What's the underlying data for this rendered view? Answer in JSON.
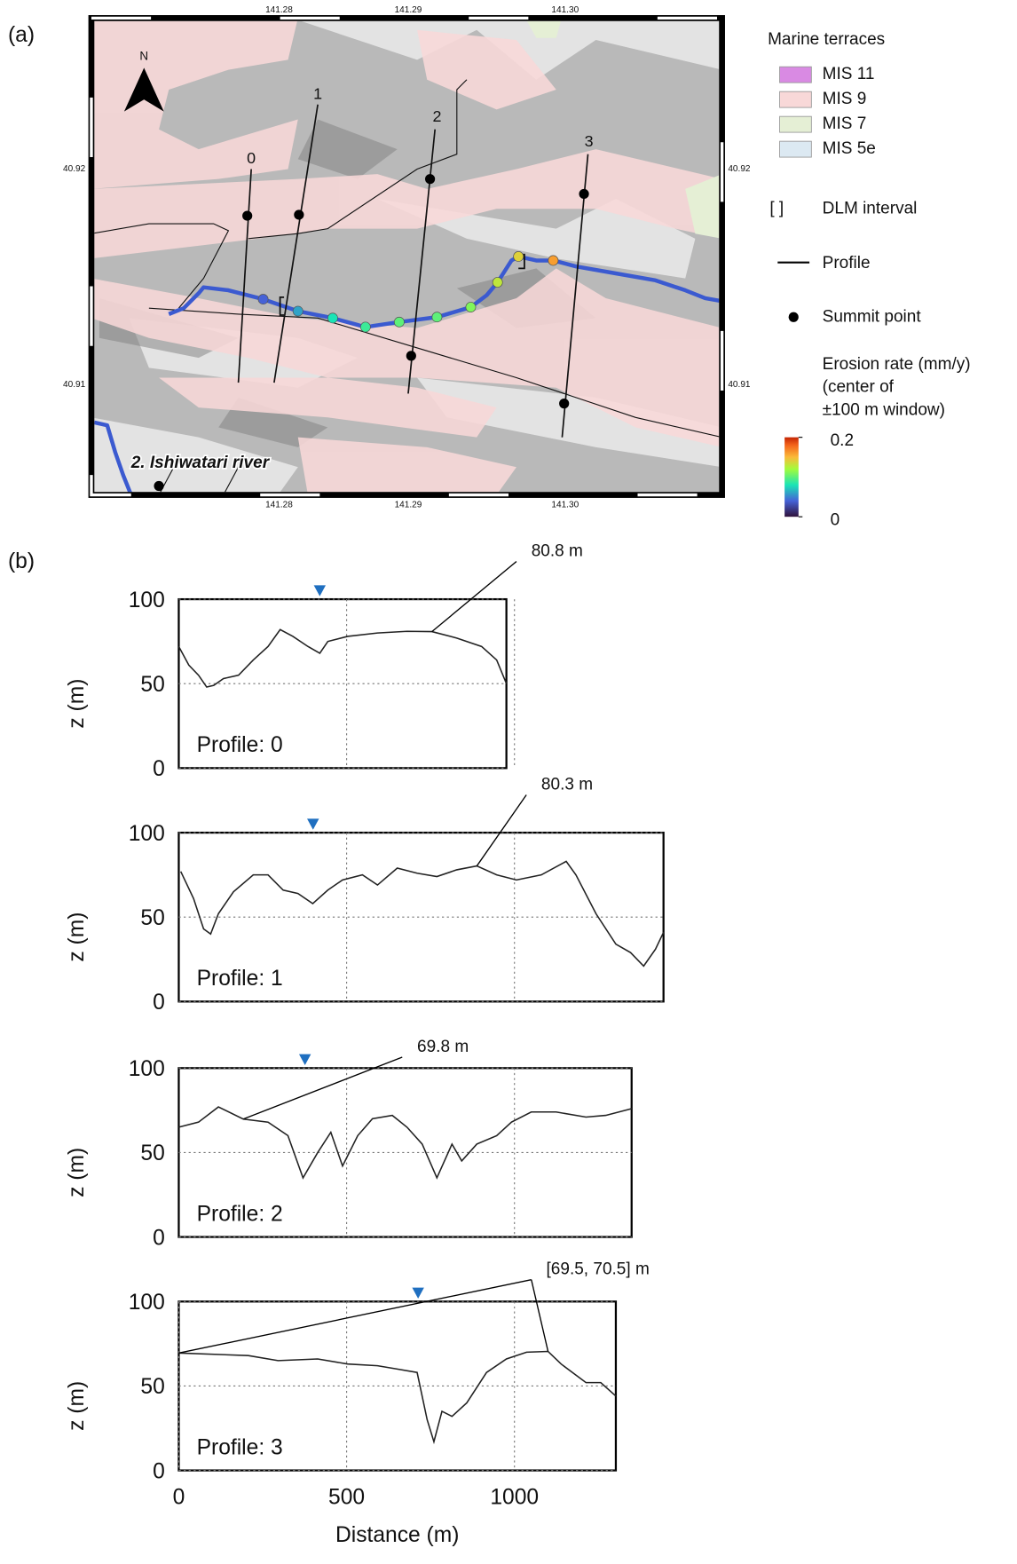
{
  "panel_labels": [
    "(a)",
    "(b)"
  ],
  "map": {
    "top_ticks": [
      "141.28",
      "141.29",
      "141.30"
    ],
    "bottom_ticks": [
      "141.28",
      "141.29",
      "141.30"
    ],
    "left_ticks": [
      "40.92",
      "40.91"
    ],
    "right_ticks": [
      "40.92",
      "40.91"
    ],
    "north": "N",
    "profile_labels": [
      "0",
      "1",
      "2",
      "3"
    ],
    "river_label": "2. Ishiwatari river",
    "erosion_rates": [
      0.04,
      0.06,
      0.08,
      0.09,
      0.1,
      0.1,
      0.11,
      0.13,
      0.14,
      0.16
    ]
  },
  "legend": {
    "title": "Marine terraces",
    "terraces": [
      {
        "name": "MIS 11",
        "color": "#d98ae3"
      },
      {
        "name": "MIS 9",
        "color": "#f8d8d8"
      },
      {
        "name": "MIS 7",
        "color": "#e5efd5"
      },
      {
        "name": "MIS 5e",
        "color": "#dce9f2"
      }
    ],
    "dlm_symbol": "[ ]",
    "dlm": "DLM interval",
    "profile": "Profile",
    "summit": "Summit point",
    "colorbar_title": [
      "Erosion rate (mm/y)",
      "(center of",
      "±100 m window)"
    ],
    "colorbar_lim": [
      0,
      0.2
    ],
    "colorbar_ticks": [
      0,
      0.2
    ]
  },
  "chart_data": [
    {
      "type": "line",
      "label": "Profile: 0",
      "ylabel": "z (m)",
      "color": "#222",
      "x": [
        0,
        30,
        59,
        83,
        104,
        133,
        178,
        222,
        266,
        302,
        340,
        385,
        420,
        444,
        503,
        592,
        680,
        754,
        828,
        902,
        947,
        976
      ],
      "y": [
        72,
        61,
        55,
        48,
        49,
        53,
        55,
        64,
        72,
        82,
        78,
        72,
        68,
        75,
        78,
        80,
        81,
        80.8,
        77,
        72,
        64,
        50
      ],
      "xlim": [
        0,
        976
      ],
      "ylim": [
        0,
        100
      ],
      "xticks": [
        500,
        1000
      ],
      "yticks": [
        0,
        50,
        100
      ],
      "show_xtick_labels": false,
      "river_x": 420,
      "grid": true,
      "annotations": [
        {
          "text": "80.8 m",
          "points": [
            [
              754,
              80.8
            ]
          ]
        }
      ]
    },
    {
      "type": "line",
      "label": "Profile: 1",
      "ylabel": "z (m)",
      "color": "#222",
      "x": [
        6,
        44,
        74,
        95,
        118,
        163,
        222,
        266,
        311,
        355,
        399,
        444,
        488,
        547,
        592,
        651,
        710,
        769,
        828,
        888,
        947,
        1006,
        1080,
        1154,
        1183,
        1243,
        1302,
        1346,
        1385,
        1420,
        1444
      ],
      "y": [
        77,
        61,
        43,
        40,
        52,
        65,
        75,
        75,
        66,
        64,
        58,
        66,
        72,
        75,
        69,
        79,
        76,
        74,
        78,
        80.3,
        75,
        72,
        75,
        83,
        75,
        52,
        34,
        29,
        21,
        31,
        41
      ],
      "xlim": [
        0,
        1444
      ],
      "ylim": [
        0,
        100
      ],
      "xticks": [
        500,
        1000
      ],
      "yticks": [
        0,
        50,
        100
      ],
      "show_xtick_labels": false,
      "river_x": 400,
      "grid": true,
      "annotations": [
        {
          "text": "80.3 m",
          "points": [
            [
              888,
              80.3
            ]
          ]
        }
      ]
    },
    {
      "type": "line",
      "label": "Profile: 2",
      "ylabel": "z (m)",
      "color": "#222",
      "x": [
        0,
        59,
        118,
        192,
        266,
        325,
        370,
        414,
        453,
        488,
        533,
        577,
        636,
        680,
        725,
        769,
        814,
        843,
        888,
        947,
        991,
        1050,
        1124,
        1213,
        1272,
        1349
      ],
      "y": [
        65,
        68,
        77,
        69.8,
        68,
        60,
        35,
        50,
        62,
        42,
        60,
        70,
        72,
        65,
        55,
        35,
        55,
        45,
        55,
        60,
        68,
        74,
        74,
        71,
        72,
        76
      ],
      "xlim": [
        0,
        1349
      ],
      "ylim": [
        0,
        100
      ],
      "xticks": [
        500,
        1000
      ],
      "yticks": [
        0,
        50,
        100
      ],
      "show_xtick_labels": false,
      "river_x": 376,
      "grid": true,
      "annotations": [
        {
          "text": "69.8 m",
          "points": [
            [
              192,
              69.8
            ]
          ]
        }
      ]
    },
    {
      "type": "line",
      "label": "Profile: 3",
      "ylabel": "z (m)",
      "xlabel": "Distance (m)",
      "color": "#222",
      "x": [
        0,
        207,
        296,
        414,
        503,
        592,
        651,
        710,
        740,
        760,
        784,
        814,
        858,
        917,
        976,
        1036,
        1100,
        1139,
        1213,
        1257,
        1302
      ],
      "y": [
        69.5,
        68,
        65,
        66,
        63,
        62,
        60,
        58,
        30,
        17,
        35,
        32,
        40,
        58,
        66,
        70,
        70.5,
        63,
        52,
        52,
        44
      ],
      "xlim": [
        0,
        1302
      ],
      "ylim": [
        0,
        100
      ],
      "xticks": [
        0,
        500,
        1000
      ],
      "yticks": [
        0,
        50,
        100
      ],
      "show_xtick_labels": true,
      "river_x": 713,
      "grid": true,
      "annotations": [
        {
          "text": "[69.5, 70.5] m",
          "points": [
            [
              0,
              69.5
            ],
            [
              1100,
              70.5
            ]
          ]
        }
      ]
    }
  ]
}
